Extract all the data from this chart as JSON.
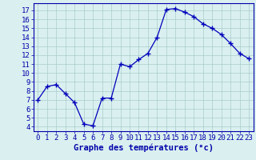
{
  "hours": [
    0,
    1,
    2,
    3,
    4,
    5,
    6,
    7,
    8,
    9,
    10,
    11,
    12,
    13,
    14,
    15,
    16,
    17,
    18,
    19,
    20,
    21,
    22,
    23
  ],
  "temperatures": [
    7.0,
    8.5,
    8.7,
    7.7,
    6.7,
    4.3,
    4.1,
    7.2,
    7.2,
    11.0,
    10.7,
    11.5,
    12.2,
    14.0,
    17.1,
    17.2,
    16.8,
    16.3,
    15.5,
    15.0,
    14.3,
    13.3,
    12.2,
    11.6
  ],
  "xlabel": "Graphe des températures (°c)",
  "ylim": [
    3.5,
    17.8
  ],
  "xlim": [
    -0.5,
    23.5
  ],
  "yticks": [
    4,
    5,
    6,
    7,
    8,
    9,
    10,
    11,
    12,
    13,
    14,
    15,
    16,
    17
  ],
  "xticks": [
    0,
    1,
    2,
    3,
    4,
    5,
    6,
    7,
    8,
    9,
    10,
    11,
    12,
    13,
    14,
    15,
    16,
    17,
    18,
    19,
    20,
    21,
    22,
    23
  ],
  "line_color": "#0000bb",
  "marker": "+",
  "bg_color": "#daf0f0",
  "grid_color": "#aacaca",
  "axis_color": "#0000aa",
  "xlabel_fontsize": 7.5,
  "tick_fontsize": 6.5
}
